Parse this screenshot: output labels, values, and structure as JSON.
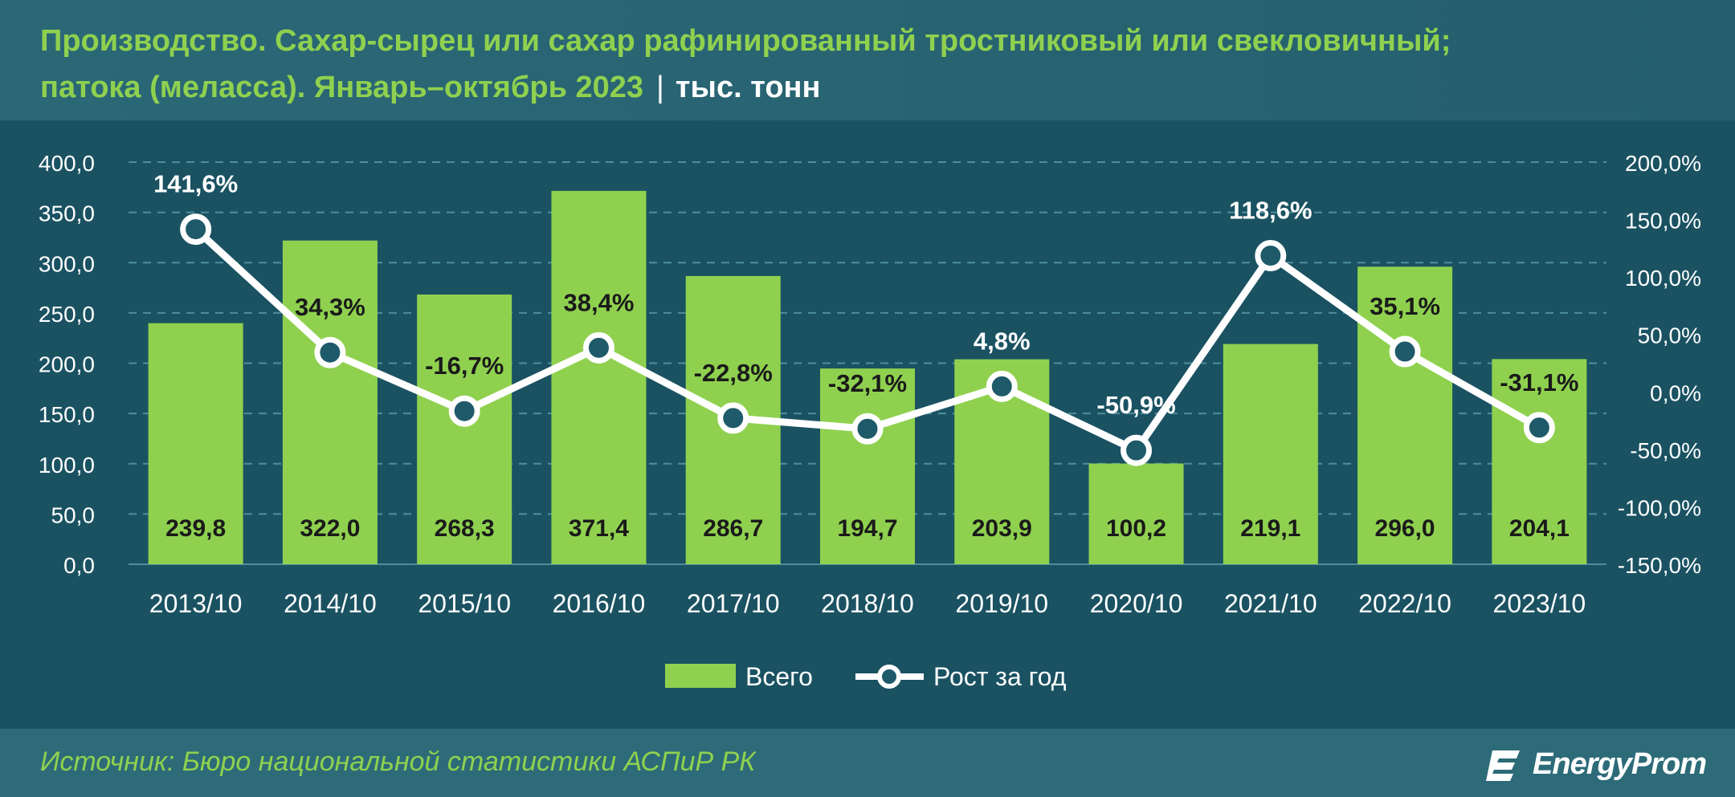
{
  "header": {
    "title_line1": "Производство. Сахар-сырец или сахар рафинированный тростниковый или свекловичный;",
    "title_line2": "патока (меласса). Январь–октябрь 2023",
    "separator": "|",
    "unit": "тыс. тонн"
  },
  "footer": {
    "source": "Источник: Бюро национальной статистики АСПиР РК",
    "logo_text": "EnergyProm",
    "logo_icon": "energyprom-logo-icon"
  },
  "colors": {
    "bar": "#8fd14f",
    "line": "#ffffff",
    "grid": "#4f8e9c",
    "text": "#ffffff",
    "bar_label": "#1a1a1a",
    "title_accent": "#8fd14f"
  },
  "chart_data": {
    "type": "bar",
    "categories": [
      "2013/10",
      "2014/10",
      "2015/10",
      "2016/10",
      "2017/10",
      "2018/10",
      "2019/10",
      "2020/10",
      "2021/10",
      "2022/10",
      "2023/10"
    ],
    "series": [
      {
        "name": "Всего",
        "type": "bar",
        "axis": "left",
        "values": [
          239.8,
          322.0,
          268.3,
          371.4,
          286.7,
          194.7,
          203.9,
          100.2,
          219.1,
          296.0,
          204.1
        ],
        "labels": [
          "239,8",
          "322,0",
          "268,3",
          "371,4",
          "286,7",
          "194,7",
          "203,9",
          "100,2",
          "219,1",
          "296,0",
          "204,1"
        ]
      },
      {
        "name": "Рост за год",
        "type": "line",
        "axis": "right",
        "values": [
          141.6,
          34.3,
          -16.7,
          38.4,
          -22.8,
          -32.1,
          4.8,
          -50.9,
          118.6,
          35.1,
          -31.1
        ],
        "labels": [
          "141,6%",
          "34,3%",
          "-16,7%",
          "38,4%",
          "-22,8%",
          "-32,1%",
          "4,8%",
          "-50,9%",
          "118,6%",
          "35,1%",
          "-31,1%"
        ]
      }
    ],
    "ylim_left": [
      0,
      400
    ],
    "ylim_right": [
      -150,
      200
    ],
    "left_ticks": [
      "0,0",
      "50,0",
      "100,0",
      "150,0",
      "200,0",
      "250,0",
      "300,0",
      "350,0",
      "400,0"
    ],
    "right_ticks": [
      "-150,0%",
      "-100,0%",
      "-50,0%",
      "0,0%",
      "50,0%",
      "100,0%",
      "150,0%",
      "200,0%"
    ],
    "grid": true,
    "legend_position": "bottom-center"
  }
}
